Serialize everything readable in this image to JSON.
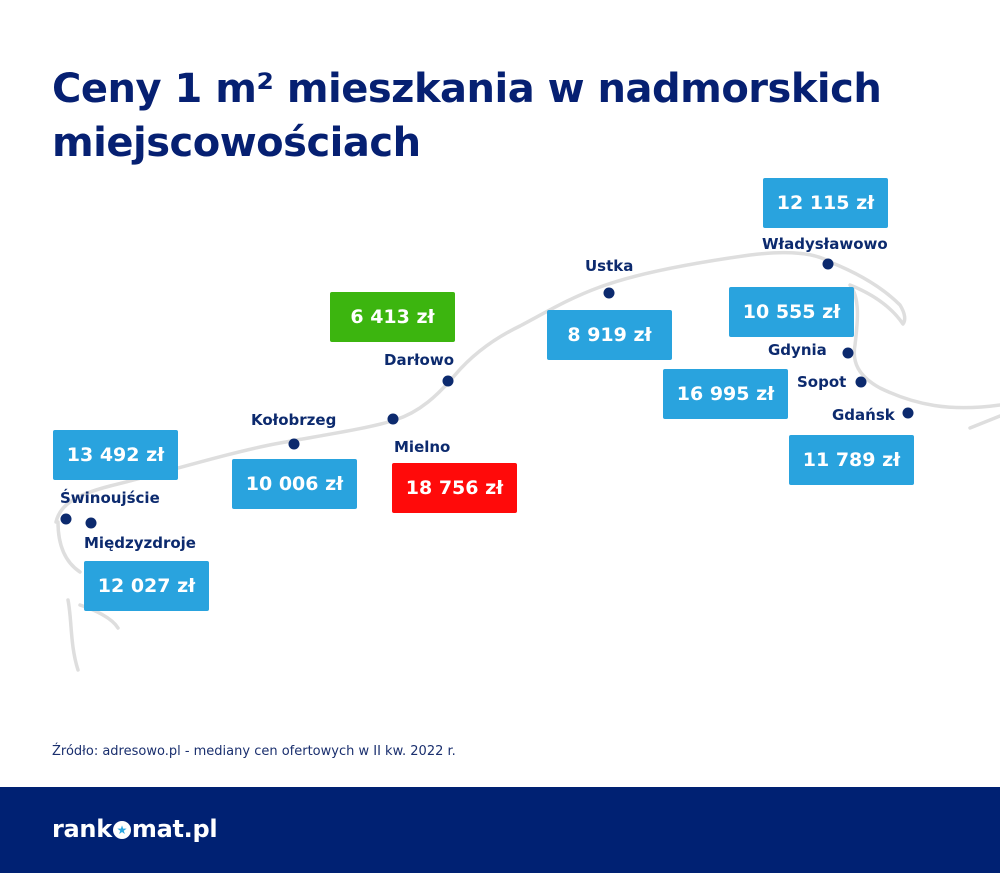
{
  "title": {
    "line1": "Ceny 1 m² mieszkania w nadmorskich",
    "line2": "miejscowościach"
  },
  "colors": {
    "title": "#062072",
    "box_default": "#29a3de",
    "box_lowest": "#3cb50f",
    "box_highest": "#ff0a0a",
    "dot": "#0c2a6e",
    "coast": "#dedede",
    "footer": "#002173"
  },
  "cities": [
    {
      "name": "Świnoujście",
      "price": "13 492 zł",
      "highlight": "default"
    },
    {
      "name": "Międzyzdroje",
      "price": "12 027 zł",
      "highlight": "default"
    },
    {
      "name": "Kołobrzeg",
      "price": "10 006 zł",
      "highlight": "default"
    },
    {
      "name": "Mielno",
      "price": "18 756 zł",
      "highlight": "highest"
    },
    {
      "name": "Darłowo",
      "price": "6 413 zł",
      "highlight": "lowest"
    },
    {
      "name": "Ustka",
      "price": "8 919 zł",
      "highlight": "default"
    },
    {
      "name": "Władysławowo",
      "price": "12 115 zł",
      "highlight": "default"
    },
    {
      "name": "Gdynia",
      "price": "10 555 zł",
      "highlight": "default"
    },
    {
      "name": "Sopot",
      "price": "16 995 zł",
      "highlight": "default"
    },
    {
      "name": "Gdańsk",
      "price": "11 789 zł",
      "highlight": "default"
    }
  ],
  "source": "Źródło: adresowo.pl - mediany cen ofertowych w II kw. 2022 r.",
  "footer": {
    "logo_left": "rank",
    "logo_mark": "mark-star-icon",
    "logo_right": "mat.pl"
  }
}
